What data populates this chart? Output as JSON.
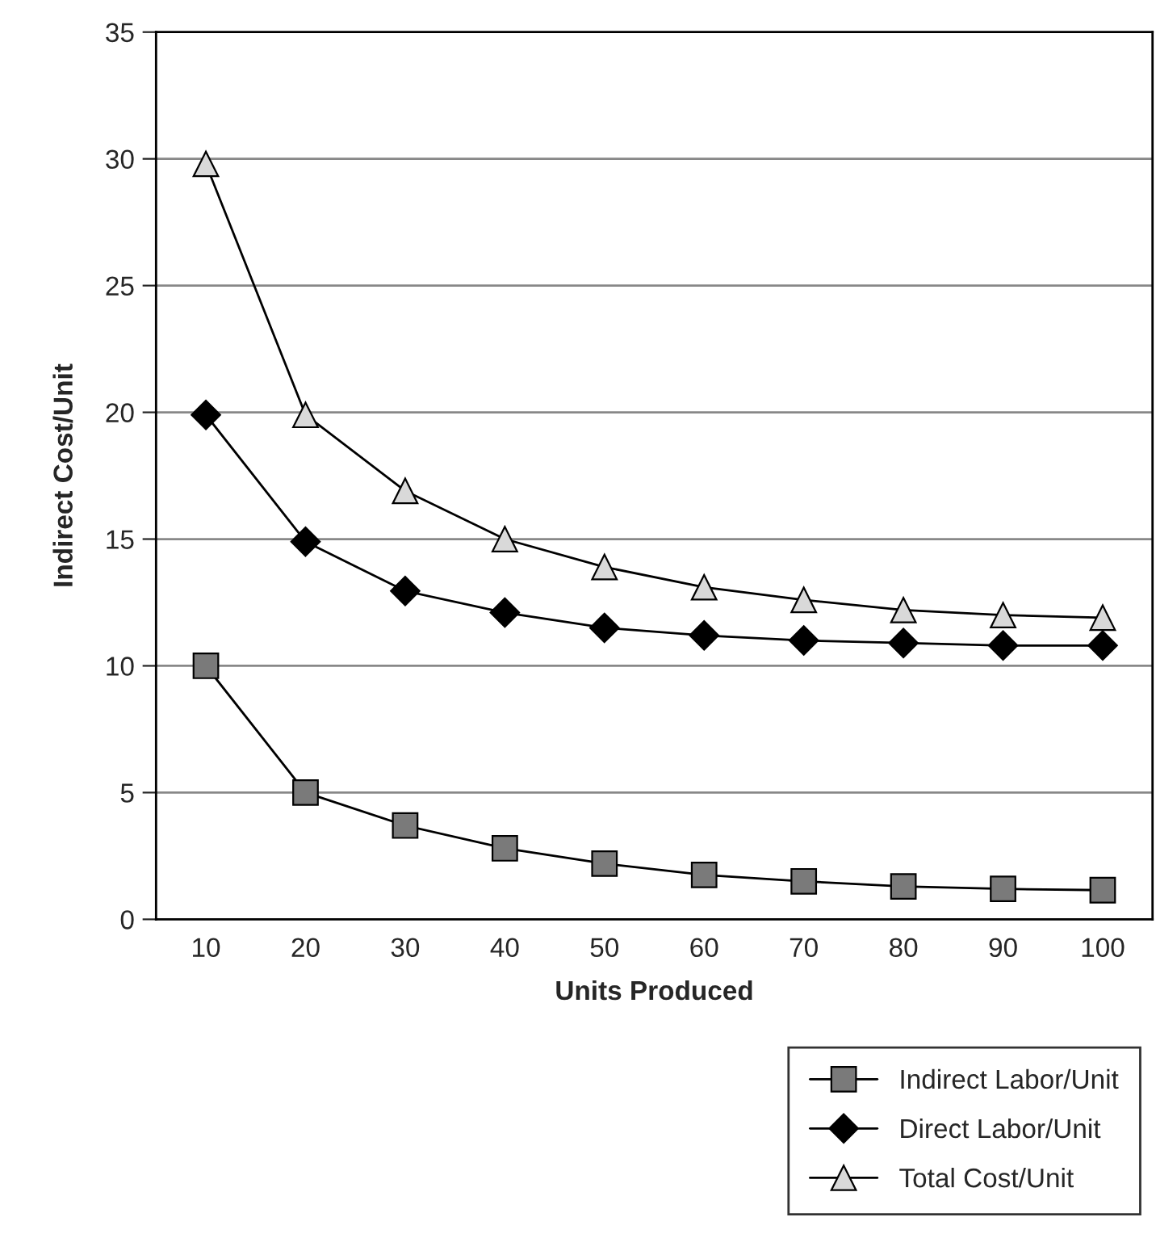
{
  "chart_data": {
    "type": "line",
    "xlabel": "Units Produced",
    "ylabel": "Indirect Cost/Unit",
    "categories": [
      "10",
      "20",
      "30",
      "40",
      "50",
      "60",
      "70",
      "80",
      "90",
      "100"
    ],
    "series": [
      {
        "name": "Indirect Labor/Unit",
        "color": "#7a7a7a",
        "marker": "square",
        "values": [
          10.0,
          5.0,
          3.7,
          2.8,
          2.2,
          1.75,
          1.5,
          1.3,
          1.2,
          1.15
        ]
      },
      {
        "name": "Direct Labor/Unit",
        "color": "#000000",
        "marker": "diamond",
        "values": [
          19.9,
          14.9,
          12.95,
          12.1,
          11.5,
          11.2,
          11.0,
          10.9,
          10.8,
          10.8
        ]
      },
      {
        "name": "Total Cost/Unit",
        "color": "#d9d9d9",
        "marker": "triangle",
        "values": [
          29.8,
          19.9,
          16.9,
          15.0,
          13.9,
          13.1,
          12.6,
          12.2,
          12.0,
          11.9
        ]
      }
    ],
    "ylim": [
      0,
      35
    ],
    "yticks": [
      0,
      5,
      10,
      15,
      20,
      25,
      30,
      35
    ],
    "grid": "y",
    "legend": "bottom right",
    "line_style": "solid"
  }
}
